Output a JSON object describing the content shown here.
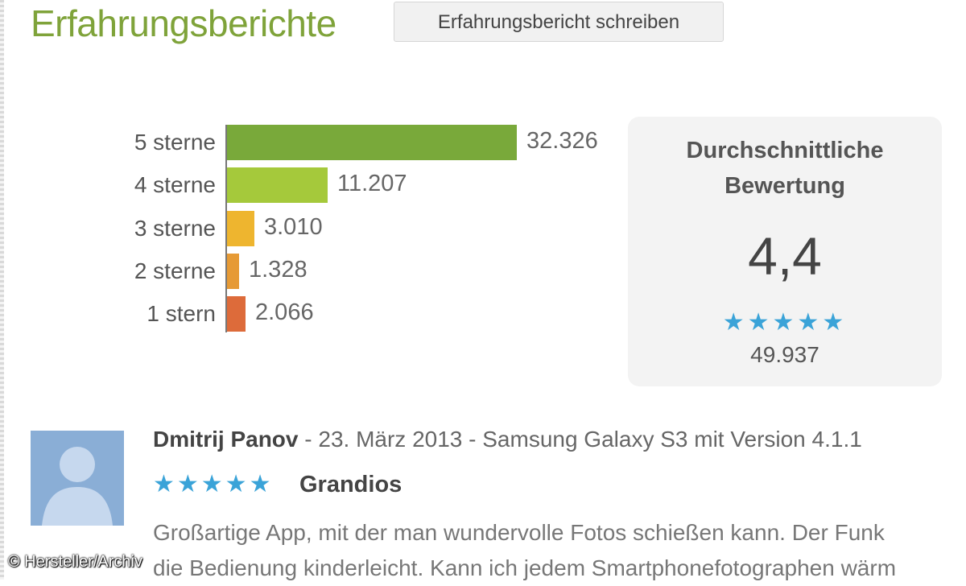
{
  "header": {
    "title": "Erfahrungsberichte",
    "write_button_label": "Erfahrungsbericht schreiben"
  },
  "histogram": {
    "rows": [
      {
        "label": "5 sterne",
        "count_text": "32.326",
        "count": 32326,
        "color": "#79a93a"
      },
      {
        "label": "4 sterne",
        "count_text": "11.207",
        "count": 11207,
        "color": "#a5c93b"
      },
      {
        "label": "3 sterne",
        "count_text": "3.010",
        "count": 3010,
        "color": "#eeb52f"
      },
      {
        "label": "2 sterne",
        "count_text": "1.328",
        "count": 1328,
        "color": "#e69a35"
      },
      {
        "label": "1 stern",
        "count_text": "2.066",
        "count": 2066,
        "color": "#dd6b3a"
      }
    ]
  },
  "average": {
    "title_line1": "Durchschnittliche",
    "title_line2": "Bewertung",
    "value": "4,4",
    "stars": "★★★★★",
    "star_rating": 4.4,
    "count": "49.937"
  },
  "review": {
    "author": "Dmitrij Panov",
    "meta": " - 23. März 2013 - Samsung Galaxy S3 mit Version 4.1.1",
    "stars": "★★★★★",
    "rating": 5,
    "title": "Grandios",
    "body_line1": "Großartige App, mit der man wundervolle Fotos schießen kann. Der Funk",
    "body_line2": "die Bedienung kinderleicht. Kann ich jedem Smartphonefotographen wärm"
  },
  "colors": {
    "title_green": "#7fa33a",
    "star_blue": "#3aa3d8"
  },
  "copyright": "© Hersteller/Archiv"
}
